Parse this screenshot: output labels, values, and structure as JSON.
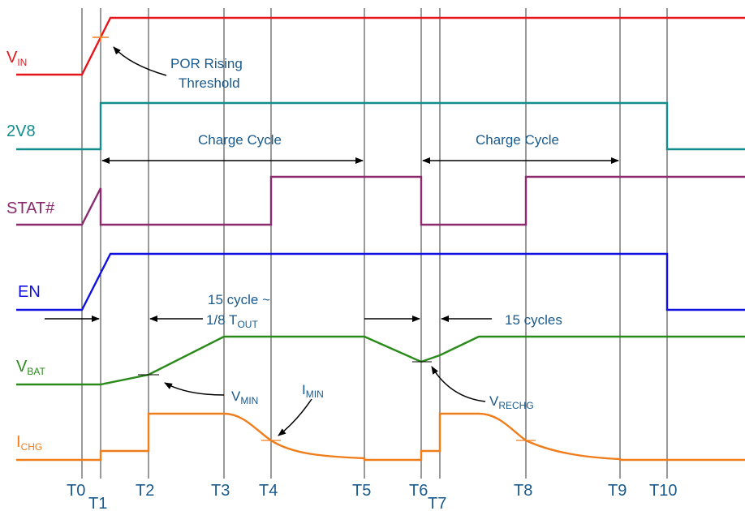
{
  "signals": [
    {
      "key": "vin",
      "main": "V",
      "sub": "IN",
      "color": "#e8141b"
    },
    {
      "key": "2v8",
      "main": "2V8",
      "sub": "",
      "color": "#138c8c"
    },
    {
      "key": "stat",
      "main": "STAT#",
      "sub": "",
      "color": "#8b2b6e"
    },
    {
      "key": "en",
      "main": "EN",
      "sub": "",
      "color": "#1010e0"
    },
    {
      "key": "vbat",
      "main": "V",
      "sub": "BAT",
      "color": "#2a8a1a"
    },
    {
      "key": "ichg",
      "main": "I",
      "sub": "CHG",
      "color": "#f07c1a"
    }
  ],
  "time_labels": [
    "T0",
    "T1",
    "T2",
    "T3",
    "T4",
    "T5",
    "T6",
    "T7",
    "T8",
    "T9",
    "T10"
  ],
  "annotations": {
    "por_line1": "POR Rising",
    "por_line2": "Threshold",
    "charge_cycle_1": "Charge Cycle",
    "charge_cycle_2": "Charge Cycle",
    "cycle_line1": "15 cycle ~",
    "cycle_line2_main": "1/8 T",
    "cycle_line2_sub": "OUT",
    "cycles_15": "15 cycles",
    "vmin_main": "V",
    "vmin_sub": "MIN",
    "imin_main": "I",
    "imin_sub": "MIN",
    "vrechg_main": "V",
    "vrechg_sub": "RECHG"
  },
  "colors": {
    "text": "#1a5a8c",
    "grid": "#000000",
    "threshold_mark": "#f07c1a"
  }
}
